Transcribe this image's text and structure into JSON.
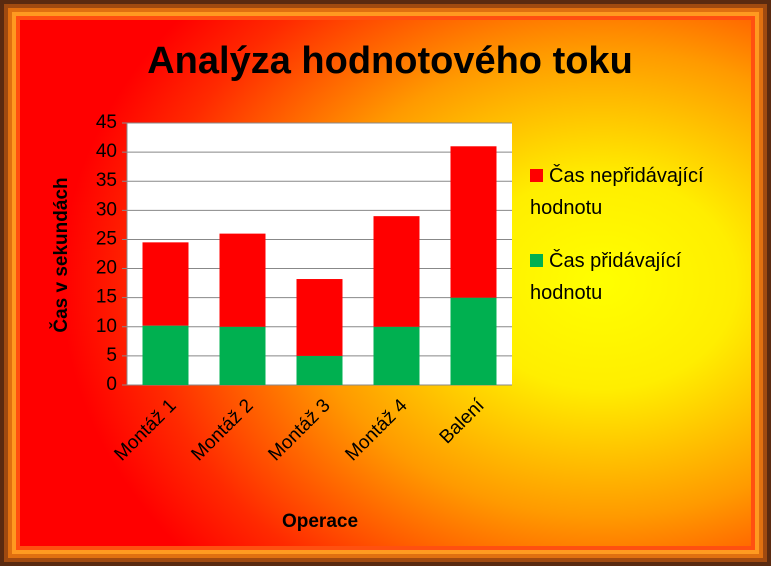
{
  "chart_data": {
    "type": "stacked_bar",
    "title": "Analýza hodnotového toku",
    "x_label": "Operace",
    "y_label": "Čas v sekundách",
    "categories": [
      "Montáž 1",
      "Montáž 2",
      "Montáž 3",
      "Montáž 4",
      "Balení"
    ],
    "series": [
      {
        "name": "Čas přidávající hodnotu",
        "color": "#00b050",
        "values": [
          10.2,
          10,
          5,
          10,
          15
        ]
      },
      {
        "name": "Čas nepřidávající hodnotu",
        "color": "#ff0000",
        "values": [
          14.3,
          16,
          13.2,
          19,
          26
        ]
      }
    ],
    "ylim": [
      0,
      45
    ],
    "yticks": [
      0,
      5,
      10,
      15,
      20,
      25,
      30,
      35,
      40,
      45
    ],
    "grid": true,
    "legend": "right"
  }
}
